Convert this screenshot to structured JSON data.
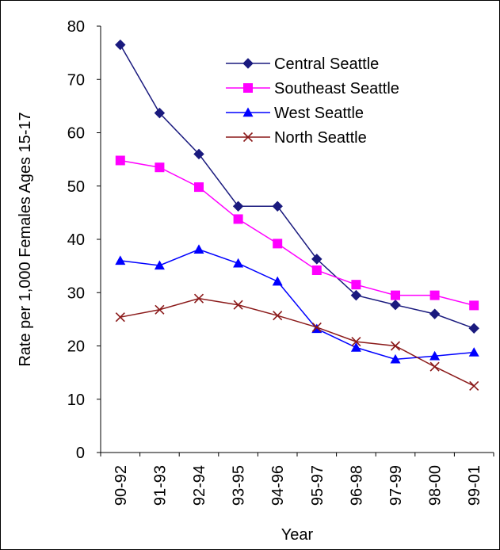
{
  "chart_data": {
    "type": "line",
    "title": "",
    "xlabel": "Year",
    "ylabel": "Rate per 1,000 Females Ages 15-17",
    "ylim": [
      0,
      80
    ],
    "yticks": [
      0,
      10,
      20,
      30,
      40,
      50,
      60,
      70,
      80
    ],
    "grid": false,
    "legend_position": "top-right",
    "categories": [
      "90-92",
      "91-93",
      "92-94",
      "93-95",
      "94-96",
      "95-97",
      "96-98",
      "97-99",
      "98-00",
      "99-01"
    ],
    "series": [
      {
        "name": "Central Seattle",
        "color": "#1a1a7e",
        "marker": "diamond",
        "values": [
          76.5,
          63.7,
          56.0,
          46.2,
          46.2,
          36.3,
          29.5,
          27.7,
          26.0,
          23.3
        ]
      },
      {
        "name": "Southeast Seattle",
        "color": "#ff00ff",
        "marker": "square",
        "values": [
          54.8,
          53.5,
          49.8,
          43.8,
          39.2,
          34.2,
          31.5,
          29.5,
          29.5,
          27.6
        ]
      },
      {
        "name": "West Seattle",
        "color": "#0000ff",
        "marker": "triangle",
        "values": [
          36.0,
          35.1,
          38.1,
          35.5,
          32.1,
          23.2,
          19.7,
          17.5,
          18.1,
          18.8
        ]
      },
      {
        "name": "North Seattle",
        "color": "#8b1a1a",
        "marker": "x",
        "values": [
          25.4,
          26.8,
          28.9,
          27.7,
          25.7,
          23.5,
          20.8,
          20.0,
          16.1,
          12.5
        ]
      }
    ]
  }
}
